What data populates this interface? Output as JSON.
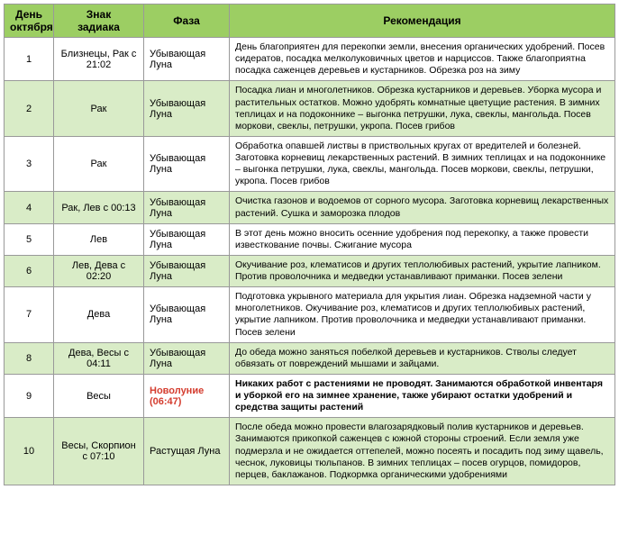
{
  "headers": {
    "day": "День\nоктября",
    "sign": "Знак\nзадиака",
    "phase": "Фаза",
    "rec": "Рекомендация"
  },
  "rows": [
    {
      "day": "1",
      "sign": "Близнецы, Рак с 21:02",
      "phase": "Убывающая Луна",
      "rec": "День благоприятен для перекопки земли, внесения органических удобрений. Посев сидератов, посадка мелколуковичных цветов и нарциссов. Также благоприятна посадка саженцев деревьев и кустарников. Обрезка роз на зиму",
      "rowClass": "odd"
    },
    {
      "day": "2",
      "sign": "Рак",
      "phase": "Убывающая Луна",
      "rec": "Посадка лиан и многолетников. Обрезка кустарников и деревьев. Уборка мусора и растительных остатков. Можно удобрять комнатные цветущие растения. В зимних теплицах и на подоконнике – выгонка петрушки, лука, свеклы, мангольда. Посев моркови, свеклы, петрушки, укропа. Посев грибов",
      "rowClass": "even"
    },
    {
      "day": "3",
      "sign": "Рак",
      "phase": "Убывающая Луна",
      "rec": "Обработка опавшей листвы в приствольных кругах от вредителей и болезней. Заготовка корневищ лекарственных растений. В зимних теплицах и на подоконнике – выгонка петрушки, лука, свеклы, мангольда. Посев моркови, свеклы, петрушки, укропа. Посев грибов",
      "rowClass": "odd"
    },
    {
      "day": "4",
      "sign": "Рак, Лев с 00:13",
      "phase": "Убывающая Луна",
      "rec": "Очистка газонов и водоемов от сорного мусора. Заготовка корневищ лекарственных растений. Сушка и заморозка плодов",
      "rowClass": "even"
    },
    {
      "day": "5",
      "sign": "Лев",
      "phase": "Убывающая Луна",
      "rec": "В этот день можно вносить осенние удобрения под перекопку, а также провести известкование почвы. Сжигание мусора",
      "rowClass": "odd"
    },
    {
      "day": "6",
      "sign": "Лев, Дева с 02:20",
      "phase": "Убывающая Луна",
      "rec": "Окучивание роз, клематисов и других теплолюбивых растений, укрытие лапником. Против проволочника и медведки устанавливают приманки. Посев зелени",
      "rowClass": "even"
    },
    {
      "day": "7",
      "sign": "Дева",
      "phase": "Убывающая Луна",
      "rec": "Подготовка укрывного материала для укрытия лиан. Обрезка надземной части у многолетников. Окучивание роз, клематисов и других теплолюбивых растений, укрытие лапником. Против проволочника и медведки устанавливают приманки. Посев зелени",
      "rowClass": "odd"
    },
    {
      "day": "8",
      "sign": "Дева, Весы с 04:11",
      "phase": "Убывающая Луна",
      "rec": "До обеда можно заняться побелкой деревьев и кустарников. Стволы следует обвязать от повреждений мышами и зайцами.",
      "rowClass": "even"
    },
    {
      "day": "9",
      "sign": "Весы",
      "phase": "Новолуние (06:47)",
      "rec": "Никаких работ с растениями не проводят. Занимаются обработкой инвентаря и уборкой его на зимнее хранение, также убирают остатки удобрений и средства защиты растений",
      "rowClass": "odd",
      "bold": true,
      "phaseRed": true
    },
    {
      "day": "10",
      "sign": "Весы, Скорпион с 07:10",
      "phase": "Растущая Луна",
      "rec": "После обеда можно провести влагозарядковый полив кустарников и деревьев. Занимаются прикопкой саженцев с южной стороны строений. Если земля уже подмерзла и не ожидается оттепелей, можно посеять и посадить под зиму щавель, чеснок, луковицы тюльпанов. В зимних теплицах – посев огурцов, помидоров, перцев, баклажанов. Подкормка органическими удобрениями",
      "rowClass": "even"
    }
  ]
}
